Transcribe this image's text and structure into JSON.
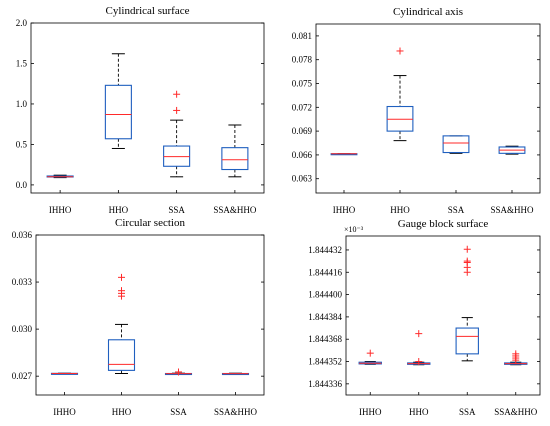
{
  "chart_data": [
    {
      "type": "box",
      "title": "Cylindrical surface",
      "categories": [
        "IHHO",
        "HHO",
        "SSA",
        "SSA&HHO"
      ],
      "ylim": [
        -0.1,
        2.0
      ],
      "yticks": [
        "0.0",
        "0.5",
        "1.0",
        "1.5",
        "2.0"
      ],
      "ytick_values": [
        0.0,
        0.5,
        1.0,
        1.5,
        2.0
      ],
      "exponent_label": "",
      "boxes": [
        {
          "min": 0.09,
          "q1": 0.1,
          "median": 0.1,
          "q3": 0.11,
          "max": 0.12,
          "outliers": []
        },
        {
          "min": 0.45,
          "q1": 0.57,
          "median": 0.87,
          "q3": 1.23,
          "max": 1.62,
          "outliers": []
        },
        {
          "min": 0.1,
          "q1": 0.23,
          "median": 0.35,
          "q3": 0.48,
          "max": 0.8,
          "outliers": [
            0.92,
            1.12
          ]
        },
        {
          "min": 0.1,
          "q1": 0.19,
          "median": 0.31,
          "q3": 0.46,
          "max": 0.74,
          "outliers": []
        }
      ]
    },
    {
      "type": "box",
      "title": "Cylindrical axis",
      "categories": [
        "IHHO",
        "HHO",
        "SSA",
        "SSA&HHO"
      ],
      "ylim": [
        0.0612,
        0.0825
      ],
      "yticks": [
        "0.063",
        "0.066",
        "0.069",
        "0.072",
        "0.075",
        "0.078",
        "0.081"
      ],
      "ytick_values": [
        0.063,
        0.066,
        0.069,
        0.072,
        0.075,
        0.078,
        0.081
      ],
      "exponent_label": "",
      "boxes": [
        {
          "min": 0.06612,
          "q1": 0.06613,
          "median": 0.06614,
          "q3": 0.06615,
          "max": 0.06616,
          "outliers": []
        },
        {
          "min": 0.0678,
          "q1": 0.069,
          "median": 0.0705,
          "q3": 0.0721,
          "max": 0.076,
          "outliers": [
            0.0791
          ]
        },
        {
          "min": 0.0662,
          "q1": 0.0663,
          "median": 0.0675,
          "q3": 0.0684,
          "max": 0.0684,
          "outliers": []
        },
        {
          "min": 0.0661,
          "q1": 0.0662,
          "median": 0.0666,
          "q3": 0.067,
          "max": 0.0671,
          "outliers": []
        }
      ]
    },
    {
      "type": "box",
      "title": "Circular section",
      "categories": [
        "IHHO",
        "HHO",
        "SSA",
        "SSA&HHO"
      ],
      "ylim": [
        0.0258,
        0.036
      ],
      "yticks": [
        "0.027",
        "0.030",
        "0.033",
        "0.036"
      ],
      "ytick_values": [
        0.027,
        0.03,
        0.033,
        0.036
      ],
      "exponent_label": "",
      "boxes": [
        {
          "min": 0.02715,
          "q1": 0.02716,
          "median": 0.02717,
          "q3": 0.02718,
          "max": 0.02719,
          "outliers": []
        },
        {
          "min": 0.02717,
          "q1": 0.02737,
          "median": 0.02775,
          "q3": 0.02932,
          "max": 0.0303,
          "outliers": [
            0.0321,
            0.03228,
            0.03245,
            0.0333
          ]
        },
        {
          "min": 0.02714,
          "q1": 0.02715,
          "median": 0.02716,
          "q3": 0.02717,
          "max": 0.02719,
          "outliers": [
            0.02727
          ]
        },
        {
          "min": 0.02714,
          "q1": 0.02715,
          "median": 0.02716,
          "q3": 0.02717,
          "max": 0.02719,
          "outliers": []
        }
      ]
    },
    {
      "type": "box",
      "title": "Gauge block surface",
      "categories": [
        "IHHO",
        "HHO",
        "SSA",
        "SSA&HHO"
      ],
      "ylim": [
        1.844328,
        1.844442
      ],
      "yticks": [
        "1.844336",
        "1.844352",
        "1.844368",
        "1.844384",
        "1.844400",
        "1.844416",
        "1.844432"
      ],
      "ytick_values": [
        1.844336,
        1.844352,
        1.844368,
        1.844384,
        1.8444,
        1.844416,
        1.844432
      ],
      "exponent_label": "×10⁻³",
      "boxes": [
        {
          "min": 1.84435,
          "q1": 1.8443503,
          "median": 1.8443508,
          "q3": 1.8443515,
          "max": 1.844352,
          "outliers": [
            1.844358
          ]
        },
        {
          "min": 1.8443497,
          "q1": 1.84435,
          "median": 1.8443505,
          "q3": 1.844351,
          "max": 1.8443515,
          "outliers": [
            1.844352,
            1.844372
          ]
        },
        {
          "min": 1.8443525,
          "q1": 1.8443575,
          "median": 1.84437,
          "q3": 1.844376,
          "max": 1.8443835,
          "outliers": [
            1.844416,
            1.8444195,
            1.844423,
            1.844424,
            1.8444325
          ]
        },
        {
          "min": 1.8443497,
          "q1": 1.84435,
          "median": 1.8443505,
          "q3": 1.844351,
          "max": 1.8443515,
          "outliers": [
            1.844353,
            1.8443545,
            1.844356,
            1.8443575
          ]
        }
      ]
    }
  ]
}
